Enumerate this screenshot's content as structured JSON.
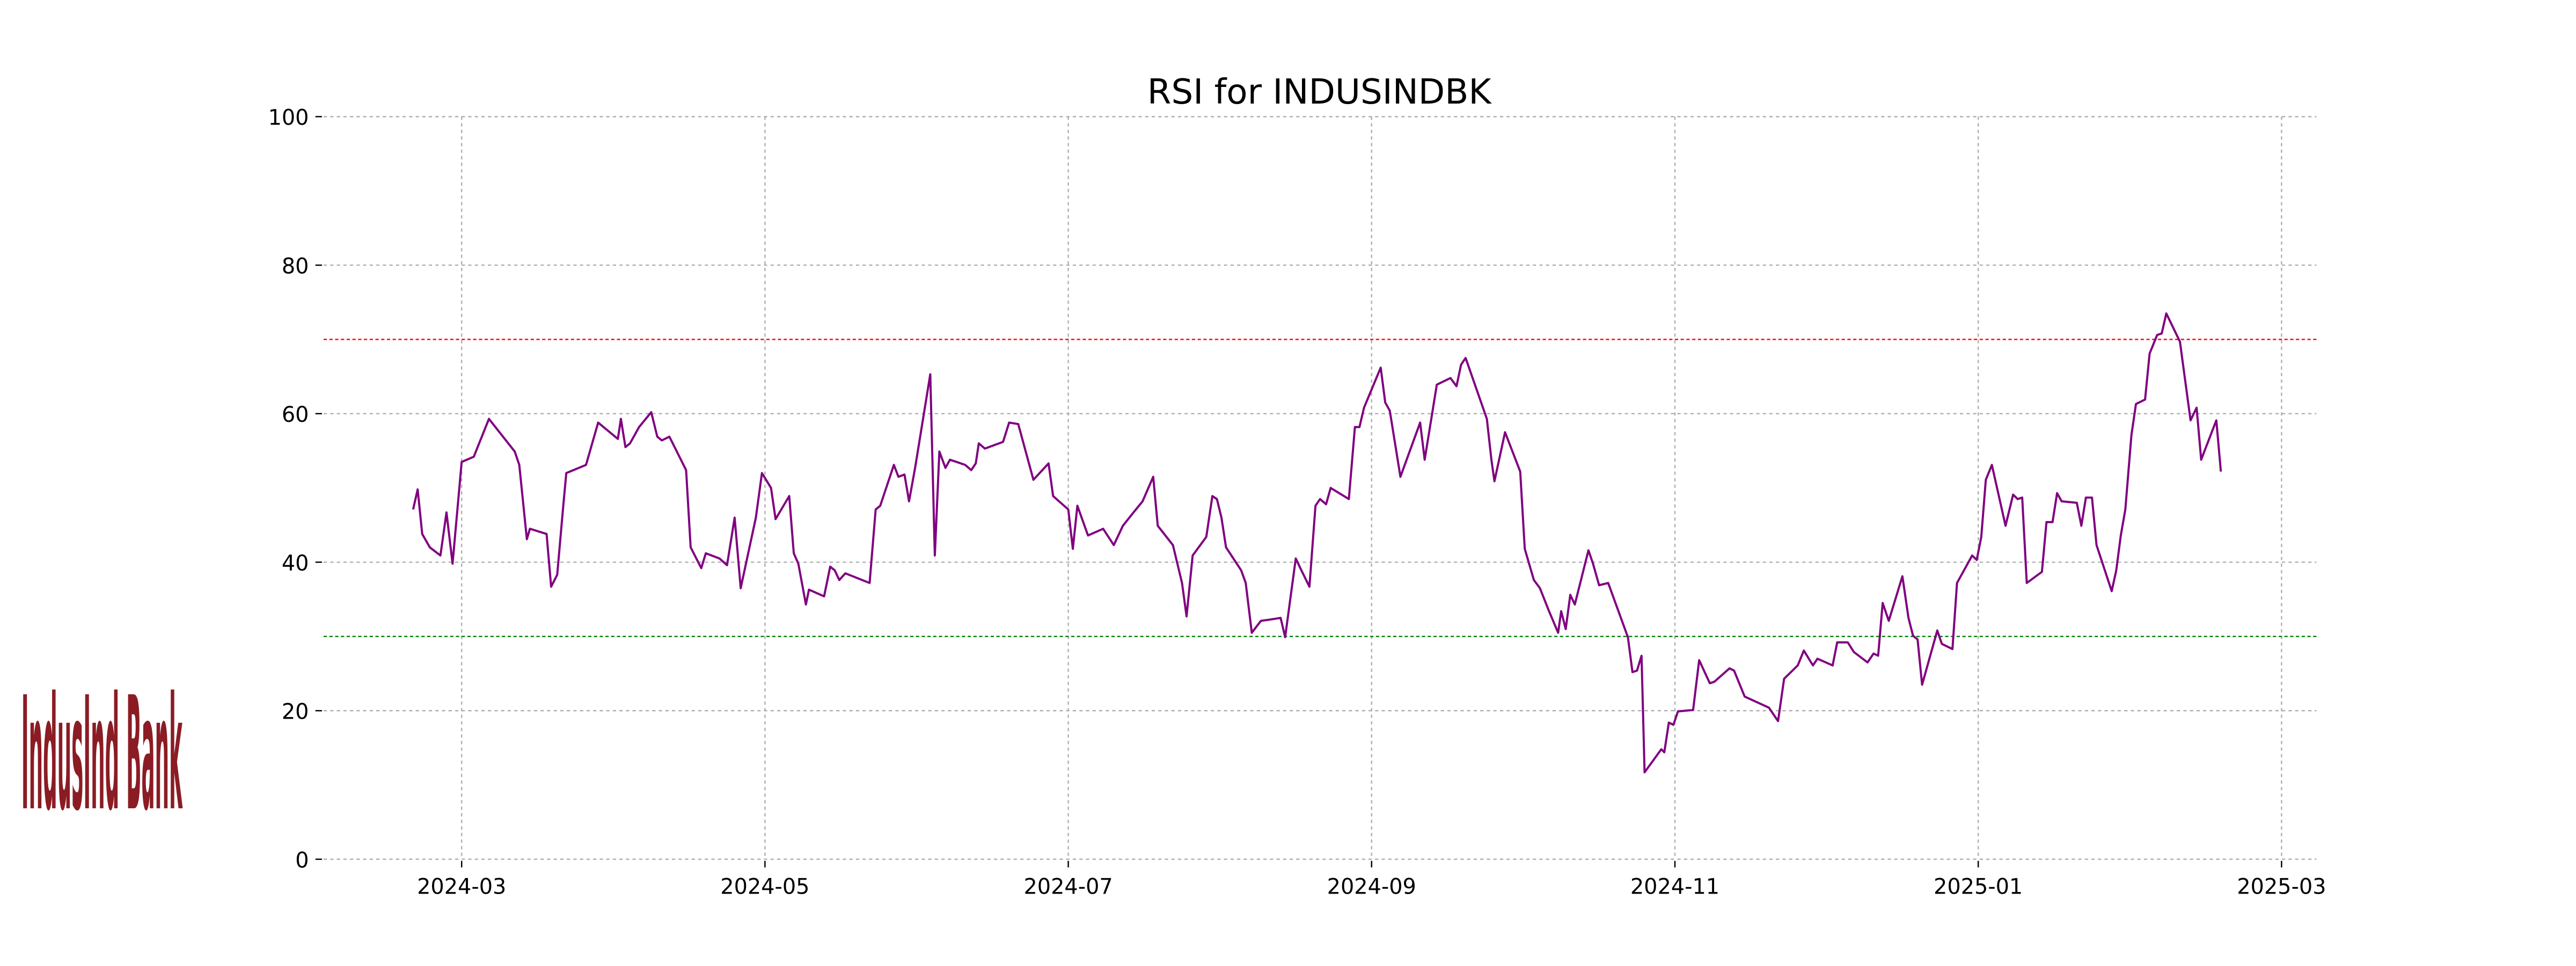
{
  "chart_data": {
    "type": "line",
    "title": "RSI for INDUSINDBK",
    "logo_text": "IndusInd Bank",
    "color": "#800080",
    "x": [
      2.68,
      2.71,
      2.74,
      2.79,
      2.86,
      2.9,
      2.94,
      3.0,
      3.08,
      3.18,
      3.35,
      3.38,
      3.41,
      3.43,
      3.45,
      3.56,
      3.59,
      3.63,
      3.67,
      3.69,
      3.82,
      3.9,
      4.03,
      4.05,
      4.08,
      4.11,
      4.17,
      4.25,
      4.29,
      4.32,
      4.37,
      4.48,
      4.51,
      4.58,
      4.61,
      4.7,
      4.75,
      4.8,
      4.84,
      4.94,
      4.98,
      5.04,
      5.07,
      5.16,
      5.19,
      5.22,
      5.27,
      5.29,
      5.39,
      5.43,
      5.46,
      5.49,
      5.53,
      5.69,
      5.73,
      5.76,
      5.85,
      5.88,
      5.92,
      5.95,
      5.99,
      6.09,
      6.12,
      6.15,
      6.19,
      6.22,
      6.32,
      6.36,
      6.39,
      6.41,
      6.45,
      6.57,
      6.61,
      6.67,
      6.77,
      6.87,
      6.9,
      7.0,
      7.03,
      7.06,
      7.13,
      7.23,
      7.3,
      7.36,
      7.43,
      7.49,
      7.56,
      7.59,
      7.69,
      7.75,
      7.78,
      7.82,
      7.91,
      7.95,
      7.98,
      8.01,
      8.04,
      8.14,
      8.17,
      8.21,
      8.27,
      8.34,
      8.4,
      8.43,
      8.5,
      8.53,
      8.59,
      8.63,
      8.66,
      8.7,
      8.73,
      8.85,
      8.89,
      8.92,
      8.95,
      9.06,
      9.09,
      9.12,
      9.19,
      9.32,
      9.35,
      9.43,
      9.52,
      9.56,
      9.59,
      9.62,
      9.76,
      9.79,
      9.81,
      9.88,
      9.98,
      10.01,
      10.07,
      10.11,
      10.17,
      10.23,
      10.25,
      10.28,
      10.31,
      10.34,
      10.43,
      10.46,
      10.5,
      10.56,
      10.69,
      10.72,
      10.75,
      10.78,
      10.8,
      10.91,
      10.93,
      10.96,
      10.99,
      11.02,
      11.12,
      11.16,
      11.23,
      11.26,
      11.36,
      11.39,
      11.46,
      11.62,
      11.68,
      11.72,
      11.81,
      11.85,
      11.91,
      11.94,
      12.04,
      12.07,
      12.14,
      12.18,
      12.27,
      12.31,
      12.34,
      12.37,
      12.41,
      12.5,
      12.54,
      12.57,
      12.6,
      12.63,
      12.73,
      12.76,
      12.83,
      12.86,
      12.96,
      12.99,
      13.02,
      13.05,
      13.09,
      13.18,
      13.23,
      13.26,
      13.29,
      13.32,
      13.42,
      13.45,
      13.49,
      13.52,
      13.55,
      13.65,
      13.68,
      13.71,
      13.75,
      13.78,
      13.88,
      13.91,
      13.94,
      13.97,
      14.01,
      14.04,
      14.1,
      14.13,
      14.18,
      14.21,
      14.24,
      14.33,
      14.4,
      14.44,
      14.47,
      14.57,
      14.6
    ],
    "values": [
      47.1,
      49.8,
      43.8,
      42.0,
      40.9,
      46.7,
      39.8,
      53.5,
      54.2,
      59.3,
      54.9,
      53.1,
      47.1,
      43.1,
      44.5,
      43.8,
      36.7,
      38.3,
      47.6,
      52.0,
      53.1,
      58.8,
      56.6,
      59.3,
      55.5,
      56.0,
      58.2,
      60.2,
      56.9,
      56.4,
      56.9,
      52.4,
      42.0,
      39.2,
      41.2,
      40.5,
      39.6,
      46.0,
      36.5,
      46.0,
      52.0,
      50.0,
      45.8,
      48.9,
      41.2,
      39.8,
      34.3,
      36.3,
      35.4,
      39.4,
      38.9,
      37.6,
      38.5,
      37.2,
      47.1,
      47.6,
      53.1,
      51.5,
      51.8,
      48.2,
      52.7,
      65.3,
      40.9,
      54.9,
      52.7,
      53.8,
      53.1,
      52.4,
      53.3,
      56.0,
      55.3,
      56.2,
      58.8,
      58.6,
      51.1,
      53.3,
      48.9,
      47.1,
      41.8,
      47.6,
      43.6,
      44.5,
      42.3,
      44.9,
      46.7,
      48.2,
      51.5,
      44.9,
      42.3,
      37.2,
      32.7,
      40.9,
      43.4,
      48.9,
      48.5,
      46.0,
      42.0,
      38.9,
      37.2,
      30.5,
      32.1,
      32.3,
      32.5,
      29.9,
      40.5,
      39.2,
      36.7,
      47.6,
      48.5,
      47.8,
      50.0,
      48.5,
      58.2,
      58.2,
      60.8,
      66.2,
      61.5,
      60.4,
      51.5,
      58.8,
      53.8,
      63.9,
      64.8,
      63.7,
      66.6,
      67.5,
      59.3,
      53.8,
      50.9,
      57.5,
      52.2,
      41.8,
      37.6,
      36.5,
      33.4,
      30.5,
      33.4,
      31.0,
      35.6,
      34.3,
      41.6,
      39.8,
      36.9,
      37.2,
      29.9,
      25.2,
      25.4,
      27.4,
      11.7,
      14.8,
      14.4,
      18.4,
      18.1,
      19.9,
      20.1,
      26.8,
      23.7,
      23.9,
      25.7,
      25.4,
      21.9,
      20.4,
      18.6,
      24.3,
      26.1,
      28.1,
      26.1,
      27.0,
      26.1,
      29.2,
      29.2,
      27.9,
      26.5,
      27.7,
      27.4,
      34.5,
      32.1,
      38.1,
      32.5,
      30.1,
      29.6,
      23.5,
      30.8,
      29.0,
      28.3,
      37.2,
      40.9,
      40.3,
      43.4,
      51.1,
      53.1,
      44.9,
      49.1,
      48.5,
      48.7,
      37.2,
      38.7,
      45.4,
      45.4,
      49.3,
      48.2,
      48.0,
      44.9,
      48.7,
      48.7,
      42.3,
      36.1,
      38.9,
      43.6,
      47.1,
      57.1,
      61.3,
      61.9,
      68.1,
      70.6,
      70.8,
      73.5,
      69.7,
      59.1,
      60.8,
      53.8,
      59.1,
      52.2
    ],
    "xlim": [
      2.09,
      15.23
    ],
    "xticks": [
      {
        "value": 3,
        "label": "2024-03"
      },
      {
        "value": 5,
        "label": "2024-05"
      },
      {
        "value": 7,
        "label": "2024-07"
      },
      {
        "value": 9,
        "label": "2024-09"
      },
      {
        "value": 11,
        "label": "2024-11"
      },
      {
        "value": 13,
        "label": "2025-01"
      },
      {
        "value": 15,
        "label": "2025-03"
      }
    ],
    "ylim": [
      0,
      100
    ],
    "yticks": [
      0,
      20,
      40,
      60,
      80,
      100
    ],
    "grid": true,
    "hlines": [
      {
        "value": 70,
        "color": "#ff0000"
      },
      {
        "value": 30,
        "color": "#008000"
      }
    ]
  }
}
